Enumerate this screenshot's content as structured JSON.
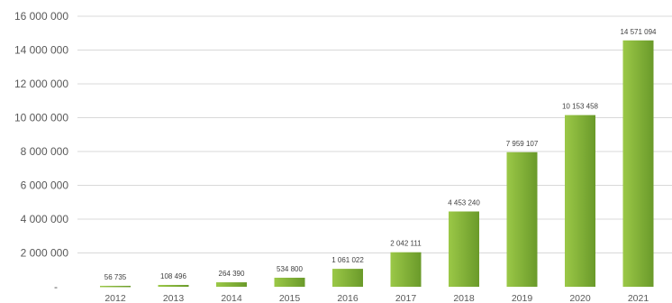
{
  "chart_data": {
    "type": "bar",
    "title": "",
    "xlabel": "",
    "ylabel": "",
    "categories": [
      "2012",
      "2013",
      "2014",
      "2015",
      "2016",
      "2017",
      "2018",
      "2019",
      "2020",
      "2021"
    ],
    "values": [
      56735,
      108496,
      264390,
      534800,
      1061022,
      2042111,
      4453240,
      7959107,
      10153458,
      14571094
    ],
    "value_labels": [
      "56 735",
      "108 496",
      "264 390",
      "534 800",
      "1 061 022",
      "2 042 111",
      "4 453 240",
      "7 959 107",
      "10 153 458",
      "14 571 094"
    ],
    "y_ticks": [
      0,
      2000000,
      4000000,
      6000000,
      8000000,
      10000000,
      12000000,
      14000000,
      16000000
    ],
    "y_tick_labels": [
      "-",
      "2 000 000",
      "4 000 000",
      "6 000 000",
      "8 000 000",
      "10 000 000",
      "12 000 000",
      "14 000 000",
      "16 000 000"
    ],
    "ylim": [
      0,
      16000000
    ],
    "grid": true,
    "legend": "none",
    "colors": {
      "bar_light": "#9bc847",
      "bar_dark": "#6a9a2a",
      "grid": "#d9d9d9",
      "text": "#595959"
    }
  }
}
